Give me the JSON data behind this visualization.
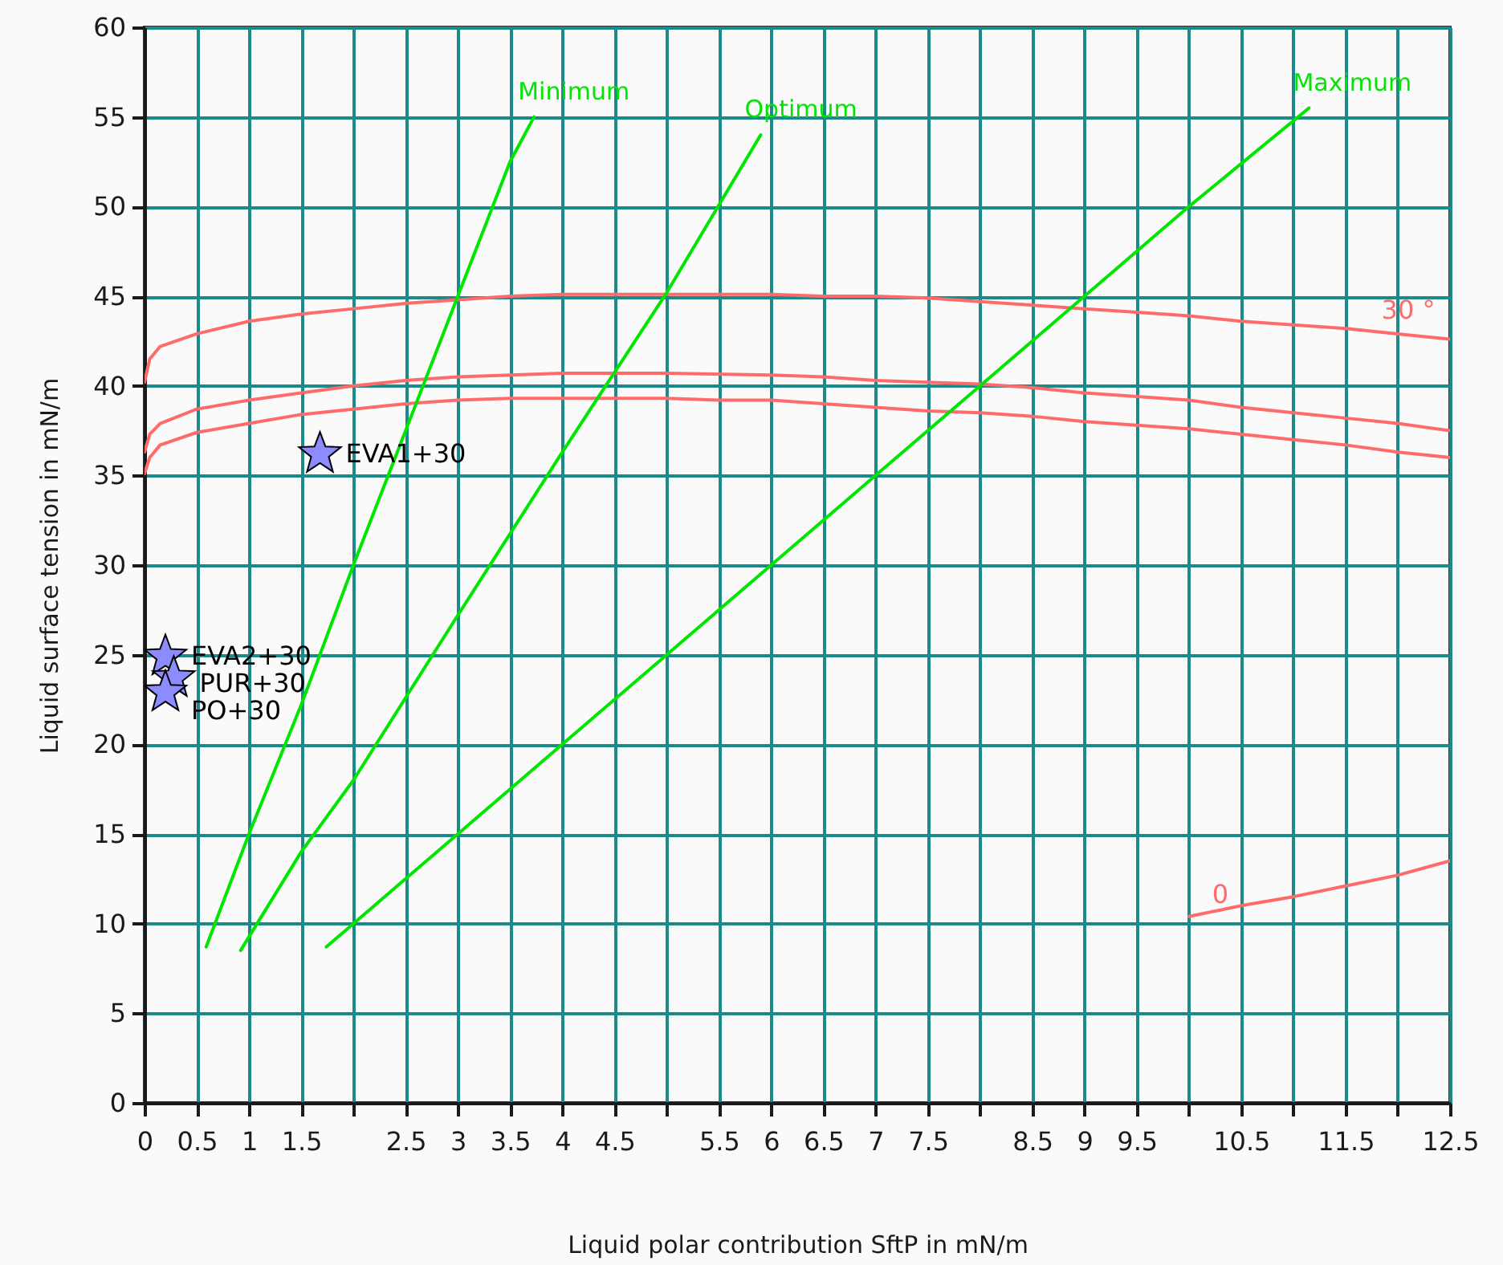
{
  "chart_data": {
    "type": "line",
    "xlabel": "Liquid polar contribution SftP in mN/m",
    "ylabel": "Liquid surface tension in mN/m",
    "xlim": [
      0,
      12.5
    ],
    "ylim": [
      0,
      60
    ],
    "xticks": [
      0,
      0.5,
      1,
      1.5,
      {
        "value": 2,
        "label": null
      },
      2.5,
      3,
      3.5,
      4,
      4.5,
      {
        "value": 5,
        "label": null
      },
      5.5,
      6,
      6.5,
      7,
      7.5,
      {
        "value": 8,
        "label": null
      },
      8.5,
      9,
      9.5,
      {
        "value": 10,
        "label": null
      },
      10.5,
      {
        "value": 11,
        "label": null
      },
      11.5,
      {
        "value": 12,
        "label": null
      },
      12.5
    ],
    "yticks": [
      0,
      5,
      10,
      15,
      20,
      25,
      30,
      35,
      40,
      45,
      50,
      55,
      60
    ],
    "grid": true,
    "series": [
      {
        "color": "#ff6b6b",
        "x": [
          0,
          0.05,
          0.15,
          0.5,
          1,
          1.5,
          2,
          2.5,
          3,
          3.5,
          4,
          5,
          6,
          6.5,
          7,
          7.5,
          8,
          8.5,
          9,
          9.5,
          10,
          10.5,
          11,
          11.5,
          12,
          12.5
        ],
        "values": [
          40.2,
          41.5,
          42.2,
          42.9,
          43.6,
          44.0,
          44.3,
          44.6,
          44.8,
          45.0,
          45.1,
          45.1,
          45.1,
          45.0,
          45.0,
          44.9,
          44.7,
          44.5,
          44.3,
          44.1,
          43.9,
          43.6,
          43.4,
          43.2,
          42.9,
          42.6
        ]
      },
      {
        "color": "#ff6b6b",
        "x": [
          0,
          0.05,
          0.15,
          0.5,
          1,
          1.5,
          2,
          2.5,
          3,
          3.5,
          4,
          5,
          6,
          6.5,
          7,
          7.5,
          8,
          8.5,
          9,
          9.5,
          10,
          10.5,
          11,
          11.5,
          12,
          12.5
        ],
        "values": [
          36.3,
          37.3,
          37.9,
          38.7,
          39.2,
          39.6,
          40.0,
          40.3,
          40.5,
          40.6,
          40.7,
          40.7,
          40.6,
          40.5,
          40.3,
          40.2,
          40.1,
          39.9,
          39.6,
          39.4,
          39.2,
          38.8,
          38.5,
          38.2,
          37.9,
          37.5
        ]
      },
      {
        "color": "#ff6b6b",
        "x": [
          0,
          0.05,
          0.15,
          0.5,
          1,
          1.5,
          2,
          2.5,
          3,
          3.5,
          4,
          5,
          5.5,
          6,
          6.5,
          7,
          7.5,
          8,
          8.5,
          9,
          9.5,
          10,
          10.5,
          11,
          11.5,
          12,
          12.5
        ],
        "values": [
          35.1,
          36.0,
          36.7,
          37.4,
          37.9,
          38.4,
          38.7,
          39.0,
          39.2,
          39.3,
          39.3,
          39.3,
          39.2,
          39.2,
          39.0,
          38.8,
          38.6,
          38.5,
          38.3,
          38.0,
          37.8,
          37.6,
          37.3,
          37.0,
          36.7,
          36.3,
          36.0
        ]
      },
      {
        "color": "#ff6b6b",
        "x": [
          10,
          10.5,
          11,
          11.5,
          12,
          12.5
        ],
        "values": [
          10.4,
          11.0,
          11.5,
          12.1,
          12.7,
          13.5
        ]
      },
      {
        "name": "Minimum",
        "color": "#00e600",
        "x": [
          0.59,
          1,
          1.5,
          2,
          2.5,
          3,
          3.5,
          3.73
        ],
        "values": [
          8.7,
          15,
          22.2,
          30,
          37.5,
          45,
          52.5,
          55
        ]
      },
      {
        "name": "Optimum",
        "color": "#00e600",
        "x": [
          0.92,
          1.5,
          2,
          3,
          4,
          5,
          5.9
        ],
        "values": [
          8.5,
          14,
          18,
          27.2,
          36.3,
          45.2,
          54
        ]
      },
      {
        "name": "Maximum",
        "color": "#00e600",
        "x": [
          1.74,
          2,
          3,
          4,
          5,
          6,
          7,
          8,
          9,
          10,
          11.15
        ],
        "values": [
          8.7,
          10,
          15,
          20,
          25,
          30,
          35,
          40,
          45,
          50,
          55.5
        ]
      },
      {
        "type": "scatter",
        "marker": "star",
        "name": "EVA1+30",
        "color": "#8c8cff",
        "x": [
          1.68
        ],
        "values": [
          36.2
        ]
      },
      {
        "type": "scatter",
        "marker": "star",
        "name": "EVA2+30",
        "color": "#8c8cff",
        "x": [
          0.2
        ],
        "values": [
          24.9
        ]
      },
      {
        "type": "scatter",
        "marker": "star",
        "name": "PUR+30",
        "color": "#8c8cff",
        "x": [
          0.28
        ],
        "values": [
          23.7
        ]
      },
      {
        "type": "scatter",
        "marker": "star",
        "name": "PO+30",
        "color": "#8c8cff",
        "x": [
          0.2
        ],
        "values": [
          22.9
        ]
      }
    ],
    "annotations": [
      {
        "text": "30 °",
        "x": 12.1,
        "y": 43.2
      },
      {
        "text": "0",
        "x": 10.3,
        "y": 10.6
      }
    ]
  }
}
